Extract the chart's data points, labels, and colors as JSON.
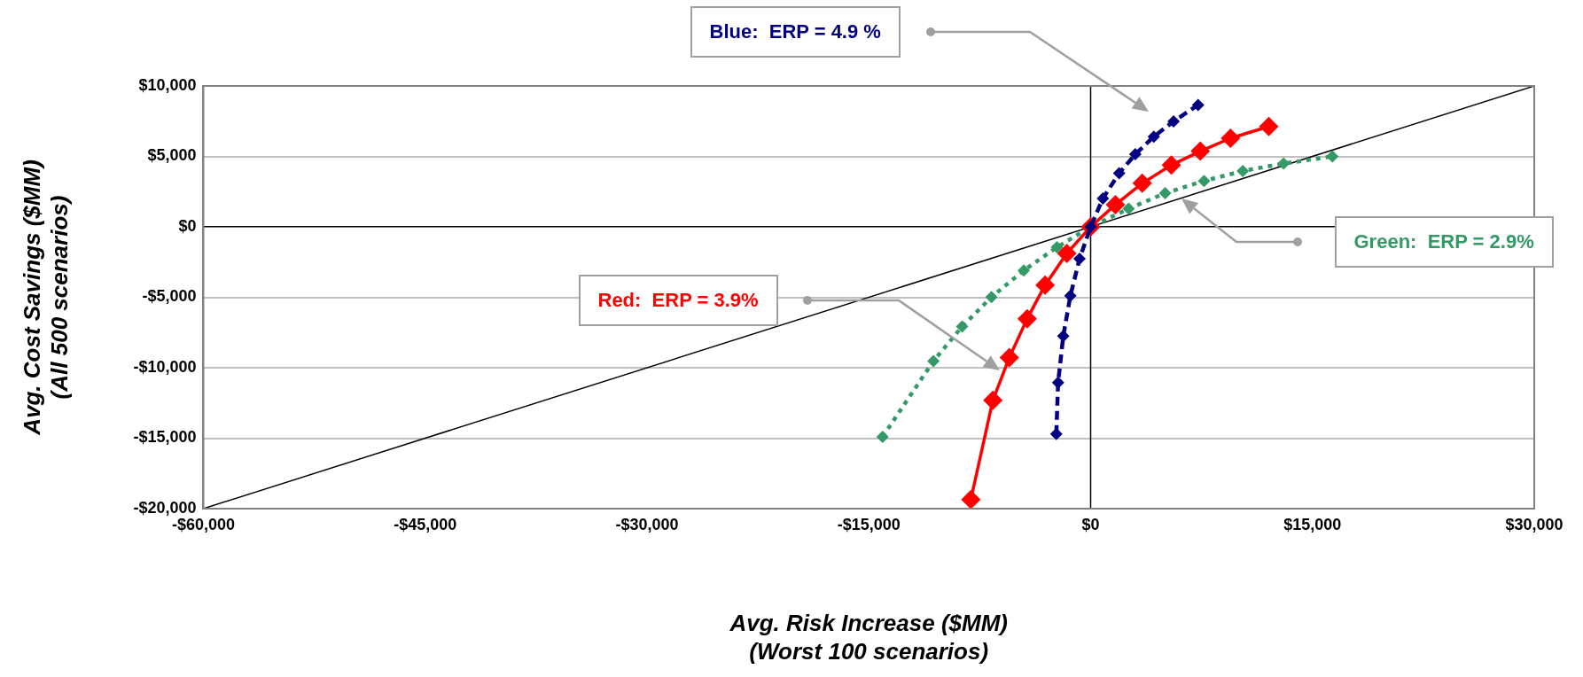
{
  "chart_data": {
    "type": "line",
    "xlabel": "Avg. Risk Increase ($MM)\n(Worst 100 scenarios)",
    "ylabel": "Avg. Cost Savings ($MM)\n(All 500 scenarios)",
    "xlim": [
      -60000,
      30000
    ],
    "ylim": [
      -20000,
      10000
    ],
    "xticks": [
      {
        "value": -60000,
        "label": "-$60,000"
      },
      {
        "value": -45000,
        "label": "-$45,000"
      },
      {
        "value": -30000,
        "label": "-$30,000"
      },
      {
        "value": -15000,
        "label": "-$15,000"
      },
      {
        "value": 0,
        "label": "$0"
      },
      {
        "value": 15000,
        "label": "$15,000"
      },
      {
        "value": 30000,
        "label": "$30,000"
      }
    ],
    "yticks": [
      {
        "value": -20000,
        "label": "-$20,000"
      },
      {
        "value": -15000,
        "label": "-$15,000"
      },
      {
        "value": -10000,
        "label": "-$10,000"
      },
      {
        "value": -5000,
        "label": "-$5,000"
      },
      {
        "value": 0,
        "label": "$0"
      },
      {
        "value": 5000,
        "label": "$5,000"
      },
      {
        "value": 10000,
        "label": "$10,000"
      }
    ],
    "grid": "y",
    "legend": false,
    "marker": "diamond",
    "ref_lines": [
      {
        "axis": "x",
        "value": 0,
        "color": "#000000"
      }
    ],
    "series": [
      {
        "color": "#000080",
        "line_style": "dashed",
        "x": [
          -2320,
          -2200,
          -1850,
          -1370,
          -750,
          0,
          830,
          1930,
          3020,
          4270,
          5610,
          7270
        ],
        "values": [
          -14700,
          -11060,
          -7750,
          -4890,
          -2270,
          0,
          2020,
          3810,
          5150,
          6400,
          7490,
          8650
        ]
      },
      {
        "color": "#ff0000",
        "line_style": "solid",
        "x": [
          -8100,
          -6610,
          -5500,
          -4290,
          -3080,
          -1610,
          0,
          1680,
          3490,
          5460,
          7420,
          9460,
          12050
        ],
        "values": [
          -19350,
          -12310,
          -9280,
          -6520,
          -4130,
          -1880,
          0,
          1580,
          3090,
          4380,
          5370,
          6290,
          7120
        ]
      },
      {
        "color": "#339966",
        "line_style": "dotted",
        "x": [
          -14070,
          -10630,
          -8690,
          -6710,
          -4520,
          -2280,
          0,
          2570,
          5040,
          7670,
          10290,
          13050,
          16350
        ],
        "values": [
          -14900,
          -9530,
          -7080,
          -4990,
          -3090,
          -1450,
          0,
          1290,
          2390,
          3260,
          3970,
          4490,
          5000
        ]
      },
      {
        "type": "line",
        "color": "#000000",
        "marker": "none",
        "line_style": "solid",
        "x": [
          -60000,
          30000
        ],
        "values": [
          -20000,
          10000
        ]
      }
    ],
    "annotations": [
      "Blue:  ERP = 4.9 %",
      "Red:  ERP = 3.9%",
      "Green:  ERP = 2.9%"
    ]
  }
}
